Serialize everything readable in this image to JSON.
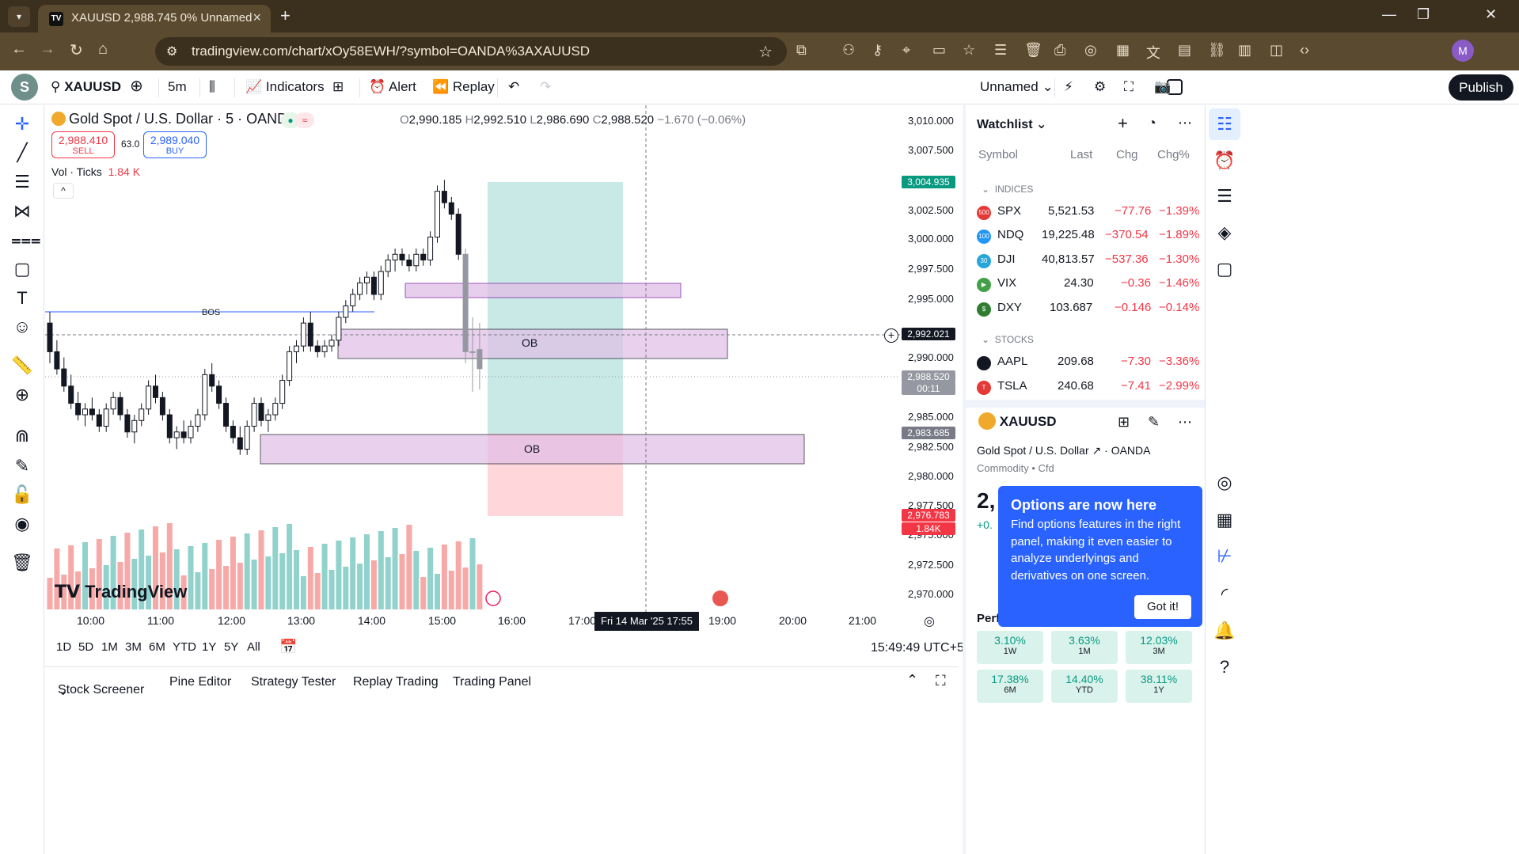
{
  "browser": {
    "tab_title": "XAUUSD 2,988.745 0% Unnamed",
    "tab_favicon": "TV",
    "url": "tradingview.com/chart/xOy58EWH/?symbol=OANDA%3AXAUUSD",
    "profile_initial": "M"
  },
  "toolbar": {
    "avatar": "S",
    "symbol": "XAUUSD",
    "interval": "5m",
    "indicators": "Indicators",
    "alert": "Alert",
    "replay": "Replay",
    "layout_name": "Unnamed",
    "publish": "Publish"
  },
  "legend": {
    "title": "Gold Spot / U.S. Dollar · 5 · OANDA",
    "o_label": "O",
    "o": "2,990.185",
    "h_label": "H",
    "h": "2,992.510",
    "l_label": "L",
    "l": "2,986.690",
    "c_label": "C",
    "c": "2,988.520",
    "change": "−1.670 (−0.06%)",
    "sell_price": "2,988.410",
    "sell_label": "SELL",
    "spread": "63.0",
    "buy_price": "2,989.040",
    "buy_label": "BUY",
    "vol_label": "Vol · Ticks",
    "vol_value": "1.84 K"
  },
  "chart_labels": {
    "bos": "BOS",
    "ob_upper": "OB",
    "ob_lower": "OB",
    "watermark": "TradingView",
    "crosshair_price": "2,992.021",
    "last_price": "2,988.520",
    "countdown": "00:11",
    "tp_price": "3,004.935",
    "entry_price": "2,983.685",
    "sl_price": "2,976.783",
    "vol_tag": "1.84K",
    "crosshair_time": "Fri 14 Mar '25   17:55"
  },
  "price_axis": [
    "3,010.000",
    "3,007.500",
    "3,002.500",
    "3,000.000",
    "2,997.500",
    "2,995.000",
    "2,990.000",
    "2,985.000",
    "2,982.500",
    "2,980.000",
    "2,977.500",
    "2,975.000",
    "2,972.500",
    "2,970.000"
  ],
  "time_axis": [
    "10:00",
    "11:00",
    "12:00",
    "13:00",
    "14:00",
    "15:00",
    "16:00",
    "17:00",
    "19:00",
    "20:00",
    "21:00"
  ],
  "ranges": [
    "1D",
    "5D",
    "1M",
    "3M",
    "6M",
    "YTD",
    "1Y",
    "5Y",
    "All"
  ],
  "clock": "15:49:49 UTC+5",
  "bottom_tabs": [
    "Stock Screener",
    "Pine Editor",
    "Strategy Tester",
    "Replay Trading",
    "Trading Panel"
  ],
  "watchlist": {
    "title": "Watchlist",
    "columns": [
      "Symbol",
      "Last",
      "Chg",
      "Chg%"
    ],
    "sections": [
      {
        "name": "INDICES",
        "rows": [
          {
            "symbol": "SPX",
            "badge": "500",
            "badge_color": "#e53935",
            "last": "5,521.53",
            "chg": "−77.76",
            "chgp": "−1.39%"
          },
          {
            "symbol": "NDQ",
            "badge": "100",
            "badge_color": "#2196f3",
            "last": "19,225.48",
            "chg": "−370.54",
            "chgp": "−1.89%"
          },
          {
            "symbol": "DJI",
            "badge": "30",
            "badge_color": "#26a6d9",
            "last": "40,813.57",
            "chg": "−537.36",
            "chgp": "−1.30%"
          },
          {
            "symbol": "VIX",
            "badge": "▶",
            "badge_color": "#43a047",
            "last": "24.30",
            "chg": "−0.36",
            "chgp": "−1.46%"
          },
          {
            "symbol": "DXY",
            "badge": "$",
            "badge_color": "#2e7d32",
            "last": "103.687",
            "chg": "−0.146",
            "chgp": "−0.14%"
          }
        ]
      },
      {
        "name": "STOCKS",
        "rows": [
          {
            "symbol": "AAPL",
            "badge": "",
            "badge_color": "#131722",
            "last": "209.68",
            "chg": "−7.30",
            "chgp": "−3.36%"
          },
          {
            "symbol": "TSLA",
            "badge": "T",
            "badge_color": "#e53935",
            "last": "240.68",
            "chg": "−7.41",
            "chgp": "−2.99%"
          }
        ]
      }
    ]
  },
  "details": {
    "symbol": "XAUUSD",
    "description": "Gold Spot / U.S. Dollar",
    "exchange": "OANDA",
    "category": "Commodity • Cfd",
    "price_partial": "2,",
    "change_partial": "+0.",
    "performance_title": "Perfo",
    "performance": [
      {
        "value": "3.10%",
        "period": "1W"
      },
      {
        "value": "3.63%",
        "period": "1M"
      },
      {
        "value": "12.03%",
        "period": "3M"
      },
      {
        "value": "17.38%",
        "period": "6M"
      },
      {
        "value": "14.40%",
        "period": "YTD"
      },
      {
        "value": "38.11%",
        "period": "1Y"
      }
    ]
  },
  "popup": {
    "title": "Options are now here",
    "body": "Find options features in the right panel, making it even easier to analyze underlyings and derivatives on one screen.",
    "button": "Got it!"
  },
  "colors": {
    "up": "#26a69a",
    "down": "#ef5350",
    "candle": "#131722",
    "ob_fill": "#e1bee7",
    "tp_zone": "#b2dfdb",
    "sl_zone": "#ffcdd2",
    "accent": "#2962ff"
  },
  "chart_data": {
    "type": "candlestick",
    "symbol": "XAUUSD",
    "interval": "5m",
    "ylim": [
      2968.0,
      3011.5
    ],
    "candles_approx": [
      [
        2992.5,
        2993.5,
        2989.0,
        2990.0
      ],
      [
        2990.0,
        2991.0,
        2988.0,
        2988.5
      ],
      [
        2988.5,
        2989.5,
        2986.5,
        2987.0
      ],
      [
        2987.0,
        2988.0,
        2985.0,
        2985.5
      ],
      [
        2985.5,
        2986.5,
        2984.0,
        2984.5
      ],
      [
        2984.5,
        2985.5,
        2983.5,
        2985.0
      ],
      [
        2985.0,
        2986.0,
        2984.0,
        2984.5
      ],
      [
        2984.5,
        2985.0,
        2983.0,
        2983.5
      ],
      [
        2983.5,
        2985.5,
        2983.0,
        2985.0
      ],
      [
        2985.0,
        2986.5,
        2984.5,
        2986.0
      ],
      [
        2986.0,
        2986.5,
        2984.0,
        2984.5
      ],
      [
        2984.5,
        2985.0,
        2982.5,
        2983.0
      ],
      [
        2983.0,
        2984.5,
        2982.0,
        2984.0
      ],
      [
        2984.0,
        2985.5,
        2983.5,
        2985.0
      ],
      [
        2985.0,
        2987.5,
        2984.5,
        2987.0
      ],
      [
        2987.0,
        2988.0,
        2985.5,
        2986.0
      ],
      [
        2986.0,
        2986.5,
        2984.0,
        2984.5
      ],
      [
        2984.5,
        2985.0,
        2982.0,
        2982.5
      ],
      [
        2982.5,
        2983.5,
        2981.5,
        2983.0
      ],
      [
        2983.0,
        2984.0,
        2982.0,
        2982.5
      ],
      [
        2982.5,
        2984.0,
        2982.0,
        2983.5
      ],
      [
        2983.5,
        2985.0,
        2983.0,
        2984.5
      ],
      [
        2984.5,
        2988.5,
        2984.0,
        2988.0
      ],
      [
        2988.0,
        2989.0,
        2986.5,
        2987.0
      ],
      [
        2987.0,
        2987.5,
        2985.0,
        2985.5
      ],
      [
        2985.5,
        2986.0,
        2983.0,
        2983.5
      ],
      [
        2983.5,
        2984.0,
        2982.0,
        2982.5
      ],
      [
        2982.5,
        2983.5,
        2981.0,
        2981.5
      ],
      [
        2981.5,
        2984.0,
        2981.0,
        2983.5
      ],
      [
        2983.5,
        2986.0,
        2983.0,
        2985.5
      ],
      [
        2985.5,
        2986.0,
        2983.5,
        2984.0
      ],
      [
        2984.0,
        2985.0,
        2983.0,
        2984.5
      ],
      [
        2984.5,
        2986.0,
        2984.0,
        2985.5
      ],
      [
        2985.5,
        2988.0,
        2985.0,
        2987.5
      ],
      [
        2987.5,
        2990.5,
        2987.0,
        2990.0
      ],
      [
        2990.0,
        2991.0,
        2989.0,
        2990.5
      ],
      [
        2990.5,
        2993.0,
        2990.0,
        2992.5
      ],
      [
        2992.5,
        2993.5,
        2990.0,
        2990.5
      ],
      [
        2990.5,
        2991.0,
        2989.5,
        2990.0
      ],
      [
        2990.0,
        2991.0,
        2989.5,
        2990.5
      ],
      [
        2990.5,
        2991.5,
        2990.0,
        2991.0
      ],
      [
        2991.0,
        2993.5,
        2990.5,
        2993.0
      ],
      [
        2993.0,
        2994.5,
        2992.5,
        2994.0
      ],
      [
        2994.0,
        2995.5,
        2993.5,
        2995.0
      ],
      [
        2995.0,
        2996.5,
        2994.5,
        2996.0
      ],
      [
        2996.0,
        2997.0,
        2995.0,
        2996.5
      ],
      [
        2996.5,
        2997.0,
        2994.5,
        2995.0
      ],
      [
        2995.0,
        2997.5,
        2994.5,
        2997.0
      ],
      [
        2997.0,
        2998.5,
        2996.5,
        2998.0
      ],
      [
        2998.0,
        2999.0,
        2997.0,
        2998.5
      ],
      [
        2998.5,
        2999.0,
        2997.5,
        2998.0
      ],
      [
        2998.0,
        2998.5,
        2997.0,
        2997.5
      ],
      [
        2997.5,
        2999.0,
        2997.0,
        2998.5
      ],
      [
        2998.5,
        2999.0,
        2997.5,
        2998.0
      ],
      [
        2998.0,
        3000.5,
        2997.5,
        3000.0
      ],
      [
        3000.0,
        3004.5,
        2999.5,
        3004.0
      ],
      [
        3004.0,
        3005.0,
        3002.5,
        3003.0
      ],
      [
        3003.0,
        3003.5,
        3001.5,
        3002.0
      ],
      [
        3002.0,
        3002.5,
        2998.0,
        2998.5
      ],
      [
        2998.5,
        2999.0,
        2989.0,
        2990.0
      ],
      [
        2990.0,
        2993.0,
        2986.5,
        2990.0
      ],
      [
        2990.185,
        2992.51,
        2986.69,
        2988.52
      ]
    ],
    "volume_last": "1.84K",
    "annotations": [
      {
        "type": "line",
        "label": "BOS",
        "price": 2993.5
      },
      {
        "type": "zone",
        "label": "OB",
        "from": 2990.2,
        "to": 2992.7
      },
      {
        "type": "zone",
        "label": "OB",
        "from": 2981.6,
        "to": 2984.2
      },
      {
        "type": "zone",
        "from": 2995.3,
        "to": 2996.5
      },
      {
        "type": "long_position",
        "take_profit": 3004.935,
        "entry": 2983.685,
        "stop_loss": 2976.783
      }
    ]
  }
}
